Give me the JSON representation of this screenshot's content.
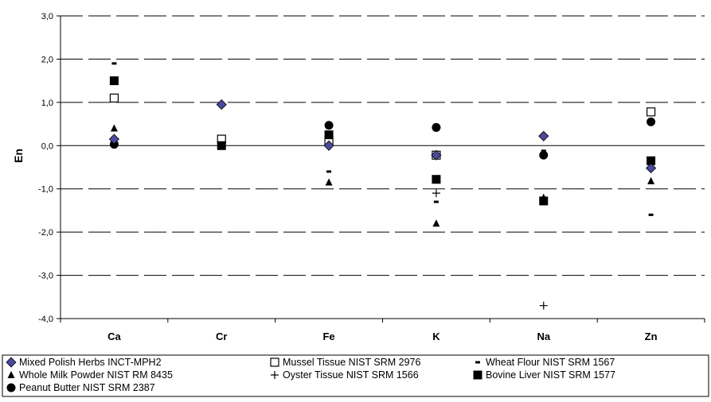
{
  "chart_data": {
    "type": "scatter",
    "title": "",
    "xlabel": "",
    "ylabel": "En",
    "categories": [
      "Ca",
      "Cr",
      "Fe",
      "K",
      "Na",
      "Zn"
    ],
    "ylim": [
      -4.0,
      3.0
    ],
    "yticks": [
      "3,0",
      "2,0",
      "1,0",
      "0,0",
      "-1,0",
      "-2,0",
      "-3,0",
      "-4,0"
    ],
    "grid": "horizontal dashed",
    "legend_position": "bottom",
    "series": [
      {
        "name": "Mixed Polish Herbs INCT-MPH2",
        "marker": "diamond",
        "color": "#4a4a9c",
        "values": [
          0.15,
          0.95,
          0.0,
          -0.22,
          0.22,
          -0.52
        ]
      },
      {
        "name": "Whole Milk Powder NIST RM 8435",
        "marker": "triangle",
        "color": "#000000",
        "values": [
          0.4,
          null,
          -0.85,
          -1.8,
          -1.2,
          -0.82
        ]
      },
      {
        "name": "Peanut Butter NIST SRM 2387",
        "marker": "circle",
        "color": "#000000",
        "values": [
          0.03,
          null,
          0.47,
          0.42,
          -0.22,
          0.55
        ]
      },
      {
        "name": "Mussel Tissue NIST SRM 2976",
        "marker": "open-square",
        "color": "#000000",
        "values": [
          1.1,
          0.15,
          0.1,
          -0.22,
          null,
          0.78
        ]
      },
      {
        "name": "Oyster Tissue NIST SRM 1566",
        "marker": "plus",
        "color": "#000000",
        "values": [
          null,
          null,
          null,
          -1.1,
          -3.7,
          null
        ]
      },
      {
        "name": "Wheat Flour NIST SRM 1567",
        "marker": "dash",
        "color": "#000000",
        "values": [
          1.9,
          null,
          -0.6,
          -1.3,
          -0.12,
          -1.6
        ]
      },
      {
        "name": "Bovine Liver NIST SRM 1577",
        "marker": "square",
        "color": "#000000",
        "values": [
          1.5,
          0.0,
          0.25,
          -0.78,
          -1.28,
          -0.35
        ]
      }
    ]
  }
}
